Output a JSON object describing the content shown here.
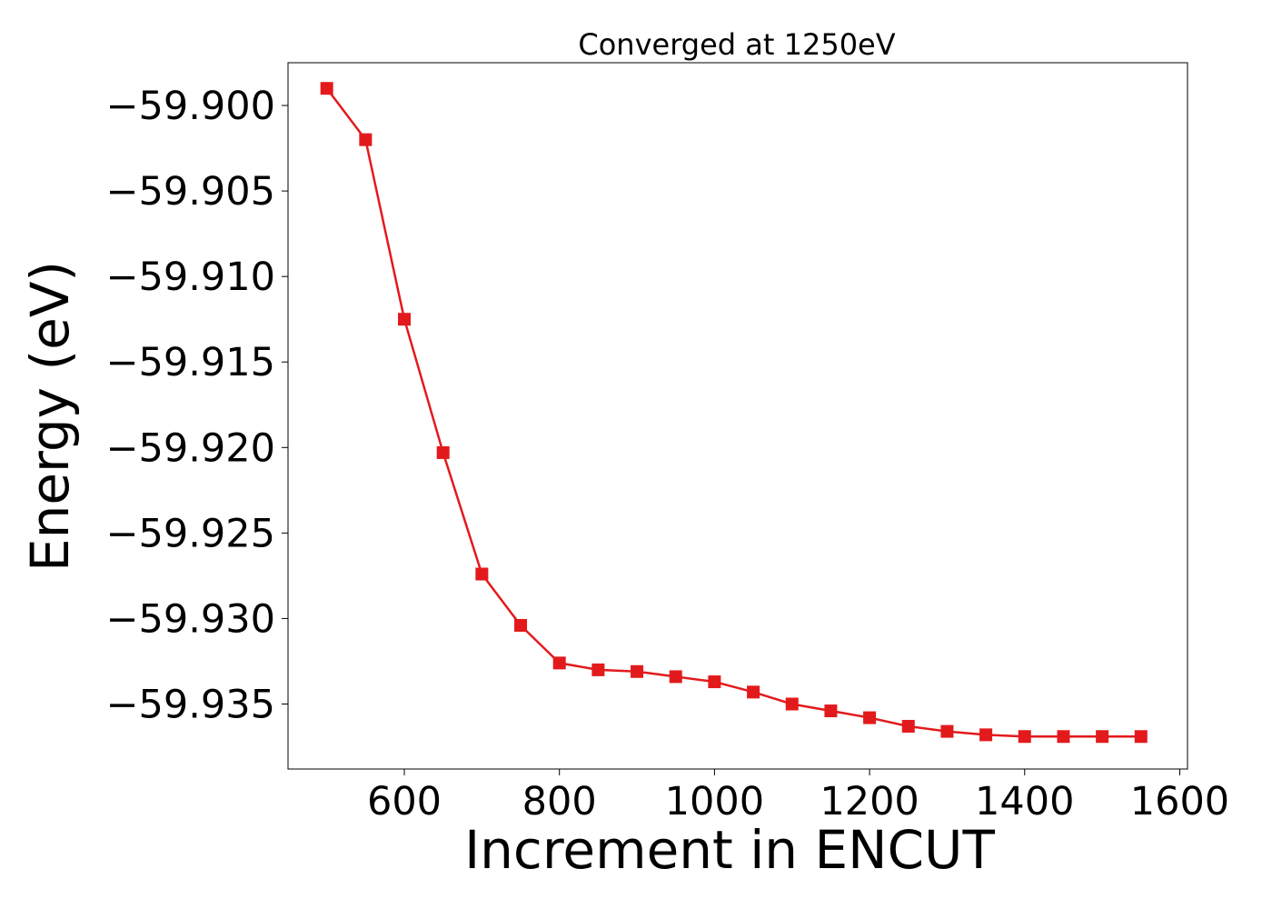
{
  "chart_data": {
    "type": "line",
    "title": "Converged at 1250eV",
    "xlabel": "Increment in ENCUT",
    "ylabel": "Energy (eV)",
    "xlim": [
      450,
      1610
    ],
    "ylim": [
      -59.9388,
      -59.8975
    ],
    "xticks": [
      600,
      800,
      1000,
      1200,
      1400,
      1600
    ],
    "xtick_labels": [
      "600",
      "800",
      "1000",
      "1200",
      "1400",
      "1600"
    ],
    "yticks": [
      -59.9,
      -59.905,
      -59.91,
      -59.915,
      -59.92,
      -59.925,
      -59.93,
      -59.935
    ],
    "ytick_labels": [
      "−59.900",
      "−59.905",
      "−59.910",
      "−59.915",
      "−59.920",
      "−59.925",
      "−59.930",
      "−59.935"
    ],
    "grid": false,
    "series": [
      {
        "color": "#e31a1c",
        "marker": "square",
        "x": [
          500,
          550,
          600,
          650,
          700,
          750,
          800,
          850,
          900,
          950,
          1000,
          1050,
          1100,
          1150,
          1200,
          1250,
          1300,
          1350,
          1400,
          1450,
          1500,
          1550
        ],
        "y": [
          -59.899,
          -59.902,
          -59.9125,
          -59.9203,
          -59.9274,
          -59.9304,
          -59.9326,
          -59.933,
          -59.9331,
          -59.9334,
          -59.9337,
          -59.9343,
          -59.935,
          -59.9354,
          -59.9358,
          -59.9363,
          -59.9366,
          -59.9368,
          -59.9369,
          -59.9369,
          -59.9369,
          -59.9369
        ]
      }
    ]
  }
}
